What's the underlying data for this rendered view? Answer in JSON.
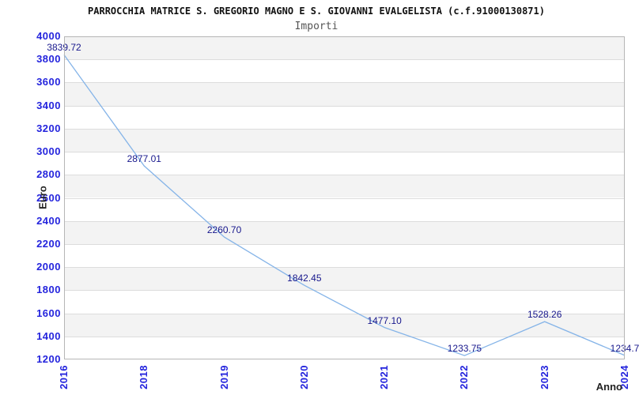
{
  "title": "PARROCCHIA MATRICE S. GREGORIO MAGNO E S. GIOVANNI EVALGELISTA (c.f.91000130871)",
  "subtitle": "Importi",
  "chart_data": {
    "type": "line",
    "categories": [
      "2016",
      "2018",
      "2019",
      "2020",
      "2021",
      "2022",
      "2023",
      "2024"
    ],
    "values": [
      3839.72,
      2877.01,
      2260.7,
      1842.45,
      1477.1,
      1233.75,
      1528.26,
      1234.7
    ],
    "point_labels": [
      "3839.72",
      "2877.01",
      "2260.70",
      "1842.45",
      "1477.10",
      "1233.75",
      "1528.26",
      "1234.7"
    ],
    "xlabel": "Anno",
    "ylabel": "Euro",
    "ylim": [
      1200,
      4000
    ],
    "ytick_step": 200,
    "yticks": [
      4000,
      3800,
      3600,
      3400,
      3200,
      3000,
      2800,
      2600,
      2400,
      2200,
      2000,
      1800,
      1600,
      1400,
      1200
    ],
    "grid": "horizontal-bands-alternating",
    "legend": "none",
    "colors": {
      "line": "#85b4e8",
      "tick_label": "#2424dd",
      "point_label": "#17178c",
      "band_gray": "#f3f3f3",
      "band_white": "#ffffff",
      "gridline": "#dcdcdc",
      "border": "#b6b6b6",
      "title": "#111111",
      "subtitle": "#555555",
      "axis_title": "#222222"
    }
  }
}
